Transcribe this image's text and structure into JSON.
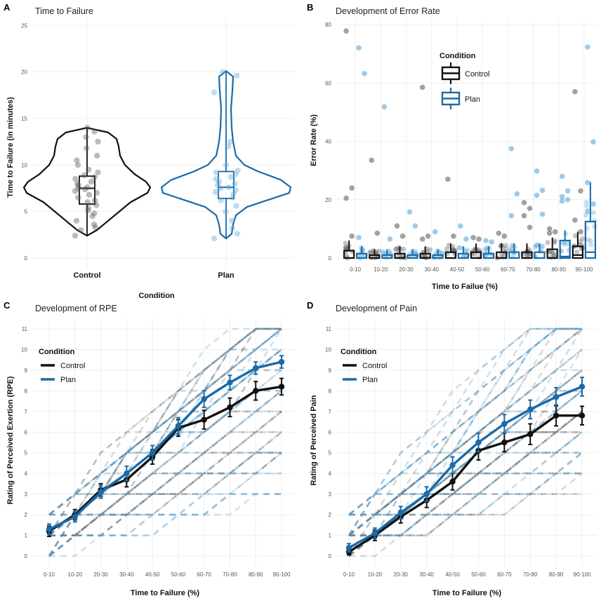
{
  "colors": {
    "control": "#111111",
    "plan": "#1a6aa8",
    "plan_light": "#5fa8d8",
    "control_light": "#555555"
  },
  "panels": [
    {
      "letter": "A",
      "title": "Time to Failure",
      "xlabel": "Condition",
      "ylabel": "Time to Failure (in minutes)",
      "ylim": [
        0,
        26
      ],
      "yticks": [
        "0",
        "5",
        "10",
        "15",
        "20",
        "25"
      ],
      "categories": [
        "Control",
        "Plan"
      ]
    },
    {
      "letter": "B",
      "title": "Development of Error Rate",
      "xlabel": "Time to Failue (%)",
      "ylabel": "Error Rate (%)",
      "ylim": [
        0,
        80
      ],
      "yticks": [
        "0",
        "20",
        "40",
        "60",
        "80"
      ],
      "legend_title": "Condition",
      "legend": [
        "Control",
        "Plan"
      ]
    },
    {
      "letter": "C",
      "title": "Development of RPE",
      "xlabel": "Time to Failure (%)",
      "ylabel": "Rating of Perceived Exertion (RPE)",
      "ylim": [
        0,
        11
      ],
      "yticks": [
        "0",
        "1",
        "2",
        "3",
        "4",
        "5",
        "6",
        "7",
        "8",
        "9",
        "10",
        "11"
      ],
      "legend_title": "Condition",
      "legend": [
        "Control",
        "Plan"
      ]
    },
    {
      "letter": "D",
      "title": "Development of Pain",
      "xlabel": "Time to Failure (%)",
      "ylabel": "Rating of Perceived Pain",
      "ylim": [
        0,
        11
      ],
      "yticks": [
        "0",
        "1",
        "2",
        "3",
        "4",
        "5",
        "6",
        "7",
        "8",
        "9",
        "10",
        "11"
      ],
      "legend_title": "Condition",
      "legend": [
        "Control",
        "Plan"
      ]
    }
  ],
  "chart_data": [
    {
      "type": "violin",
      "title": "Time to Failure",
      "xlabel": "Condition",
      "ylabel": "Time to Failure (in minutes)",
      "categories": [
        "Control",
        "Plan"
      ],
      "ylim": [
        0,
        26
      ],
      "box": [
        {
          "name": "Control",
          "min": 2.5,
          "q1": 5.8,
          "median": 7.5,
          "q3": 8.8,
          "max": 14.0
        },
        {
          "name": "Plan",
          "min": 2.2,
          "q1": 6.4,
          "median": 7.6,
          "q3": 9.3,
          "max": 20.0
        }
      ],
      "points": [
        {
          "name": "Control",
          "values": [
            2.4,
            3.0,
            3.3,
            3.6,
            4.0,
            4.5,
            4.8,
            5.1,
            5.4,
            5.7,
            6.0,
            6.2,
            6.5,
            6.8,
            7.0,
            7.2,
            7.4,
            7.5,
            7.6,
            7.8,
            8.0,
            8.2,
            8.5,
            8.7,
            8.9,
            9.2,
            9.5,
            10.0,
            10.5,
            11.0,
            11.8,
            12.5,
            13.0,
            13.6,
            14.0
          ]
        },
        {
          "name": "Plan",
          "values": [
            2.1,
            2.6,
            3.2,
            4.0,
            5.0,
            5.6,
            6.2,
            6.5,
            6.9,
            7.1,
            7.3,
            7.5,
            7.6,
            7.8,
            8.0,
            8.2,
            8.5,
            8.7,
            9.0,
            9.2,
            9.4,
            10.0,
            12.0,
            12.5,
            17.8,
            19.6,
            20.0
          ]
        }
      ]
    },
    {
      "type": "boxplot",
      "title": "Development of Error Rate",
      "xlabel": "Time to Failue (%)",
      "ylabel": "Error Rate (%)",
      "categories": [
        "0-10",
        "10-20",
        "20-30",
        "30-40",
        "40-50",
        "50-60",
        "60-70",
        "70-80",
        "80-90",
        "90-100"
      ],
      "ylim": [
        0,
        80
      ],
      "series": [
        {
          "name": "Control",
          "q1": [
            0,
            0,
            0,
            0,
            0,
            0,
            0,
            0,
            0,
            0
          ],
          "median": [
            0,
            0,
            0,
            0,
            0,
            0,
            0,
            0,
            0,
            1
          ],
          "q3": [
            2.5,
            1,
            1.5,
            1.5,
            2,
            2,
            2,
            2,
            3,
            4
          ],
          "whisker_max": [
            6,
            3,
            4,
            4,
            5,
            5,
            5,
            5,
            7,
            9
          ],
          "outliers": [
            [
              77.8,
              24,
              20.5,
              7.5
            ],
            [
              33.5,
              8.5
            ],
            [
              11,
              7.5
            ],
            [
              58.5,
              7.5,
              6.5
            ],
            [
              27,
              7.5
            ],
            [
              7,
              6.5
            ],
            [
              8.5,
              7.5
            ],
            [
              19,
              17,
              14.5,
              10.5
            ],
            [
              10,
              9,
              8.5
            ],
            [
              57,
              23,
              13,
              9
            ]
          ]
        },
        {
          "name": "Plan",
          "q1": [
            0,
            0,
            0,
            0,
            0,
            0,
            0,
            0,
            0,
            0
          ],
          "median": [
            0,
            0,
            0,
            0,
            0,
            0,
            0,
            0,
            0.5,
            2
          ],
          "q3": [
            1.5,
            1,
            1,
            1,
            1.5,
            1.5,
            2,
            2,
            6,
            12.5
          ],
          "whisker_max": [
            4,
            3,
            3,
            3,
            4,
            4,
            5,
            5,
            9.5,
            26
          ],
          "outliers": [
            [
              72,
              63.2,
              7
            ],
            [
              51.8,
              6.5
            ],
            [
              15.8,
              11
            ],
            [
              9
            ],
            [
              11,
              6.5
            ],
            [
              6,
              5.5
            ],
            [
              37.5,
              22,
              14.5
            ],
            [
              29.8,
              23.2,
              21.5,
              15
            ],
            [
              28,
              23,
              21,
              20,
              19.5
            ],
            [
              72.3,
              39.8,
              25.8,
              18.5,
              16
            ]
          ]
        }
      ]
    },
    {
      "type": "line",
      "title": "Development of RPE",
      "xlabel": "Time to Failure (%)",
      "ylabel": "Rating of Perceived Exertion (RPE)",
      "categories": [
        "0-10",
        "10-20",
        "20-30",
        "30-40",
        "40-50",
        "50-60",
        "60-70",
        "70-80",
        "80-90",
        "90-100"
      ],
      "ylim": [
        0,
        11
      ],
      "legend_title": "Condition",
      "series": [
        {
          "name": "Control",
          "values": [
            1.2,
            2.0,
            3.2,
            3.7,
            4.8,
            6.2,
            6.6,
            7.2,
            8.0,
            8.2
          ],
          "errors": [
            0.25,
            0.25,
            0.3,
            0.35,
            0.35,
            0.4,
            0.45,
            0.45,
            0.45,
            0.4
          ]
        },
        {
          "name": "Plan",
          "values": [
            1.3,
            1.9,
            3.1,
            4.0,
            5.0,
            6.3,
            7.6,
            8.4,
            9.1,
            9.4
          ],
          "errors": [
            0.25,
            0.25,
            0.3,
            0.35,
            0.35,
            0.4,
            0.4,
            0.35,
            0.3,
            0.3
          ]
        }
      ]
    },
    {
      "type": "line",
      "title": "Development of Pain",
      "xlabel": "Time to Failure (%)",
      "ylabel": "Rating of Perceived Pain",
      "categories": [
        "0-10",
        "10-20",
        "20-30",
        "30-40",
        "40-50",
        "50-60",
        "60-70",
        "70-80",
        "80-90",
        "90-100"
      ],
      "ylim": [
        0,
        11
      ],
      "legend_title": "Condition",
      "series": [
        {
          "name": "Control",
          "values": [
            0.2,
            1.0,
            1.9,
            2.7,
            3.6,
            5.1,
            5.5,
            5.9,
            6.8,
            6.8
          ],
          "errors": [
            0.15,
            0.25,
            0.3,
            0.35,
            0.4,
            0.45,
            0.45,
            0.5,
            0.5,
            0.45
          ]
        },
        {
          "name": "Plan",
          "values": [
            0.4,
            1.1,
            2.1,
            3.0,
            4.4,
            5.5,
            6.4,
            7.1,
            7.7,
            8.2
          ],
          "errors": [
            0.2,
            0.25,
            0.3,
            0.35,
            0.4,
            0.45,
            0.45,
            0.45,
            0.45,
            0.45
          ]
        }
      ]
    }
  ]
}
